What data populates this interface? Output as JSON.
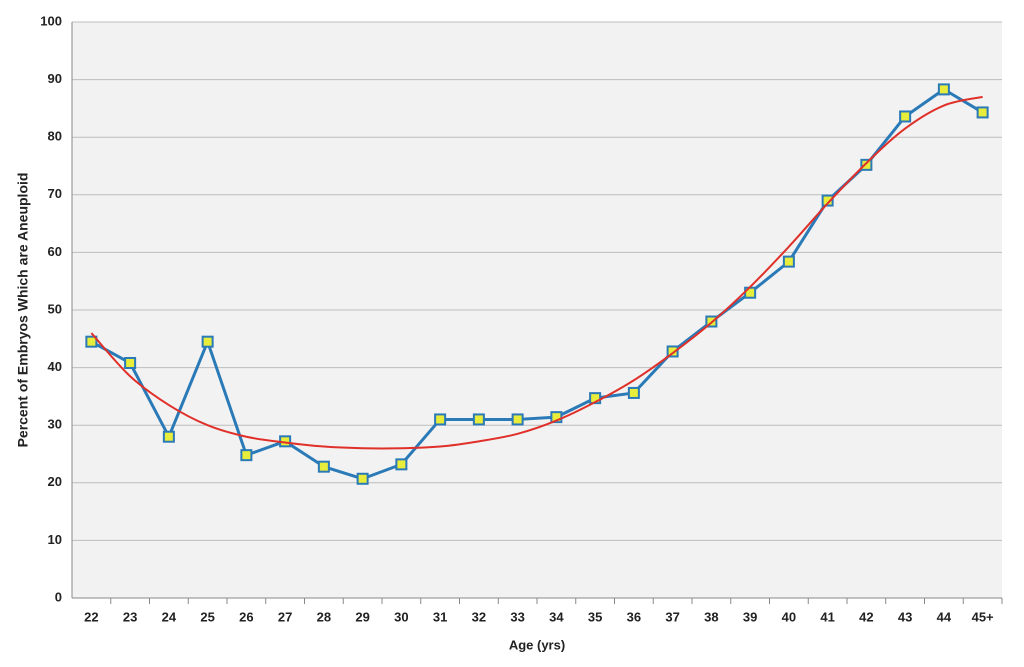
{
  "chart_data": {
    "type": "line",
    "x_label": "Age (yrs)",
    "y_label": "Percent of Embryos Which are Aneuploid",
    "categories": [
      "22",
      "23",
      "24",
      "25",
      "26",
      "27",
      "28",
      "29",
      "30",
      "31",
      "32",
      "33",
      "34",
      "35",
      "36",
      "37",
      "38",
      "39",
      "40",
      "41",
      "42",
      "43",
      "44",
      "45+"
    ],
    "series": [
      {
        "color": "#2a7ab8",
        "marker_fill": "#e8ec3a",
        "values": [
          44.5,
          40.8,
          28,
          44.5,
          24.8,
          27.2,
          22.8,
          20.7,
          23.2,
          31,
          31,
          31,
          31.4,
          34.7,
          35.6,
          42.8,
          48,
          53,
          58.4,
          69,
          75.2,
          83.6,
          88.3,
          84.3
        ]
      },
      {
        "color": "#e0302a",
        "trend": true,
        "values": [
          46,
          38.5,
          33.5,
          30,
          28,
          27,
          26.3,
          26,
          26,
          26.3,
          27.2,
          28.5,
          30.8,
          34,
          37.8,
          42.5,
          47.8,
          54,
          61,
          68.5,
          75.5,
          81.5,
          85.5,
          87
        ]
      }
    ],
    "ylim": [
      0,
      100
    ],
    "yticks": [
      0,
      10,
      20,
      30,
      40,
      50,
      60,
      70,
      80,
      90,
      100
    ],
    "grid": true
  }
}
